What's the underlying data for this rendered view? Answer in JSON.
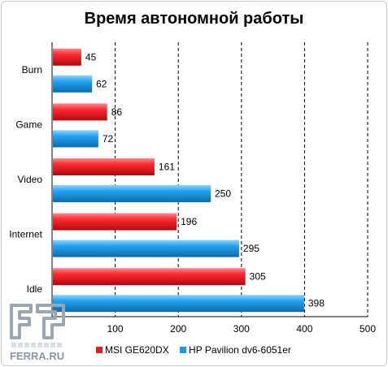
{
  "chart_data": {
    "type": "bar",
    "orientation": "horizontal",
    "title": "Время автономной работы",
    "categories": [
      "Burn",
      "Game",
      "Video",
      "Internet",
      "Idle"
    ],
    "series": [
      {
        "name": "MSI GE620DX",
        "color": "#e41c23",
        "values": [
          45,
          86,
          161,
          196,
          305
        ]
      },
      {
        "name": "HP Pavilion dv6-6051er",
        "color": "#1e9ae0",
        "values": [
          62,
          72,
          250,
          295,
          398
        ]
      }
    ],
    "xlim": [
      0,
      500
    ],
    "x_ticks": [
      100,
      200,
      300,
      400,
      500
    ],
    "x_tick_labels": [
      "100",
      "200",
      "300",
      "400",
      "500"
    ],
    "grid": "vertical dashed",
    "legend_position": "bottom"
  },
  "watermark": {
    "text": "FERRA.RU"
  }
}
